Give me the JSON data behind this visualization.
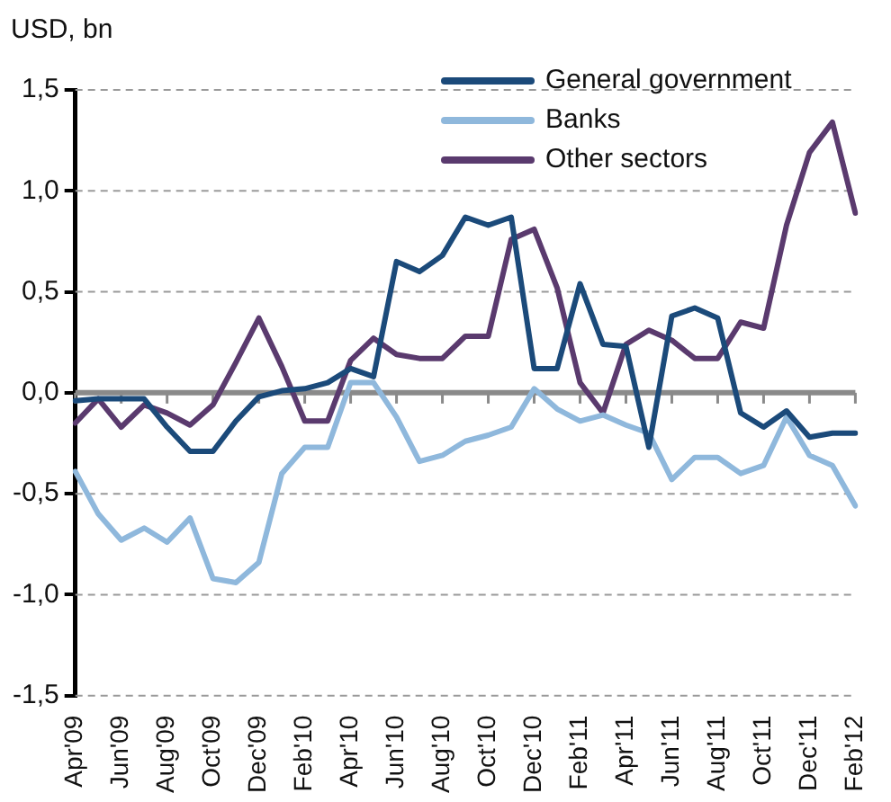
{
  "chart_data": {
    "type": "line",
    "ylabel": "USD, bn",
    "categories": [
      "Apr'09",
      null,
      "Jun'09",
      null,
      "Aug'09",
      null,
      "Oct'09",
      null,
      "Dec'09",
      null,
      "Feb'10",
      null,
      "Apr'10",
      null,
      "Jun'10",
      null,
      "Aug'10",
      null,
      "Oct'10",
      null,
      "Dec'10",
      null,
      "Feb'11",
      null,
      "Apr'11",
      null,
      "Jun'11",
      null,
      "Aug'11",
      null,
      "Oct'11",
      null,
      "Dec'11",
      null,
      "Feb'12"
    ],
    "series": [
      {
        "name": "General government",
        "color": "#1b4a7a",
        "values": [
          -0.04,
          -0.03,
          -0.03,
          -0.03,
          -0.17,
          -0.29,
          -0.29,
          -0.14,
          -0.02,
          0.01,
          0.02,
          0.05,
          0.12,
          0.08,
          0.65,
          0.6,
          0.68,
          0.87,
          0.83,
          0.87,
          0.12,
          0.12,
          0.54,
          0.24,
          0.23,
          -0.27,
          0.38,
          0.42,
          0.37,
          -0.1,
          -0.17,
          -0.09,
          -0.22,
          -0.2,
          -0.2
        ]
      },
      {
        "name": "Banks",
        "color": "#8fb8dc",
        "values": [
          -0.39,
          -0.6,
          -0.73,
          -0.67,
          -0.74,
          -0.62,
          -0.92,
          -0.94,
          -0.84,
          -0.4,
          -0.27,
          -0.27,
          0.05,
          0.05,
          -0.12,
          -0.34,
          -0.31,
          -0.24,
          -0.21,
          -0.17,
          0.02,
          -0.08,
          -0.14,
          -0.11,
          -0.16,
          -0.2,
          -0.43,
          -0.32,
          -0.32,
          -0.4,
          -0.36,
          -0.12,
          -0.31,
          -0.36,
          -0.56
        ]
      },
      {
        "name": "Other sectors",
        "color": "#5a3a6e",
        "values": [
          -0.15,
          -0.03,
          -0.17,
          -0.06,
          -0.1,
          -0.16,
          -0.06,
          0.15,
          0.37,
          0.13,
          -0.14,
          -0.14,
          0.16,
          0.27,
          0.19,
          0.17,
          0.17,
          0.28,
          0.28,
          0.76,
          0.81,
          0.52,
          0.05,
          -0.1,
          0.24,
          0.31,
          0.26,
          0.17,
          0.17,
          0.35,
          0.32,
          0.83,
          1.19,
          1.34,
          0.89
        ]
      }
    ],
    "ylim": [
      -1.5,
      1.5
    ],
    "yticks": [
      {
        "value": -1.5,
        "label": "-1,5"
      },
      {
        "value": -1,
        "label": "-1,0"
      },
      {
        "value": -0.5,
        "label": "-0,5"
      },
      {
        "value": 0,
        "label": "0,0"
      },
      {
        "value": 0.5,
        "label": "0,5"
      },
      {
        "value": 1,
        "label": "1,0"
      },
      {
        "value": 1.5,
        "label": "1,5"
      }
    ],
    "grid": "y",
    "legend": "top right",
    "marker": "none",
    "line_style": "solid"
  }
}
